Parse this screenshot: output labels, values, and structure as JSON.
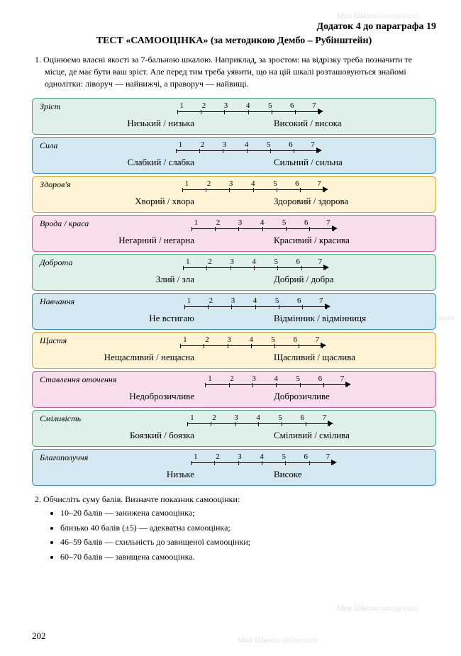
{
  "appendix": "Додаток 4 до параграфа 19",
  "title": "ТЕСТ «САМООЦІНКА» (за методикою Дембо – Рубінштейн)",
  "intro_num": "1.",
  "intro": "Оцінюємо власні якості за 7-бальною шкалою. Наприклад, за зростом: на відрізку треба позначити те місце, де має бути ваш зріст. Але перед тим треба уявити, що на цій шкалі розташовуються знайомі однолітки: ліворуч — найнижчі, а праворуч — найвищі.",
  "scale_ticks": [
    "1",
    "2",
    "3",
    "4",
    "5",
    "6",
    "7"
  ],
  "scales": [
    {
      "name": "Зріст",
      "left": "Низький / низька",
      "right": "Високий / висока",
      "bg": "#def0e8",
      "border": "#4aa578"
    },
    {
      "name": "Сила",
      "left": "Слабкий / слабка",
      "right": "Сильний / сильна",
      "bg": "#d4e8f2",
      "border": "#3b8db8"
    },
    {
      "name": "Здоров'я",
      "left": "Хворий / хвора",
      "right": "Здоровий / здорова",
      "bg": "#fff3d6",
      "border": "#d4a53a"
    },
    {
      "name": "Врода / краса",
      "left": "Негарний / негарна",
      "right": "Красивий / красива",
      "bg": "#f8ddea",
      "border": "#c85a9a"
    },
    {
      "name": "Доброта",
      "left": "Злий / зла",
      "right": "Добрий / добра",
      "bg": "#def0e8",
      "border": "#4aa578"
    },
    {
      "name": "Навчання",
      "left": "Не встигаю",
      "right": "Відмінник / відмінниця",
      "bg": "#d4e8f2",
      "border": "#3b8db8"
    },
    {
      "name": "Щастя",
      "left": "Нещасливий / нещасна",
      "right": "Щасливий / щаслива",
      "bg": "#fff3d6",
      "border": "#d4a53a"
    },
    {
      "name": "Ставлення оточення",
      "left": "Недоброзичливе",
      "right": "Доброзичливе",
      "bg": "#f8ddea",
      "border": "#c85a9a"
    },
    {
      "name": "Сміливість",
      "left": "Боязкий / боязка",
      "right": "Сміливий / смілива",
      "bg": "#def0e8",
      "border": "#4aa578"
    },
    {
      "name": "Благополуччя",
      "left": "Низьке",
      "right": "Високе",
      "bg": "#d4e8f2",
      "border": "#3b8db8"
    }
  ],
  "section2_num": "2.",
  "section2": "Обчисліть суму балів. Визначте показник самооцінки:",
  "bullets": [
    "10–20 балів — занижена самооцінка;",
    "близько 40 балів (±5) — адекватна самооцінка;",
    "46–59 балів — схильність до завищеної самооцінки;",
    "60–70 балів — завищена самооцінка."
  ],
  "page_number": "202",
  "watermark_text": "Моя Школа",
  "watermark_sub": "OBOZREVATEL",
  "colors": {
    "text": "#000000",
    "watermark": "#b8c5d6"
  }
}
